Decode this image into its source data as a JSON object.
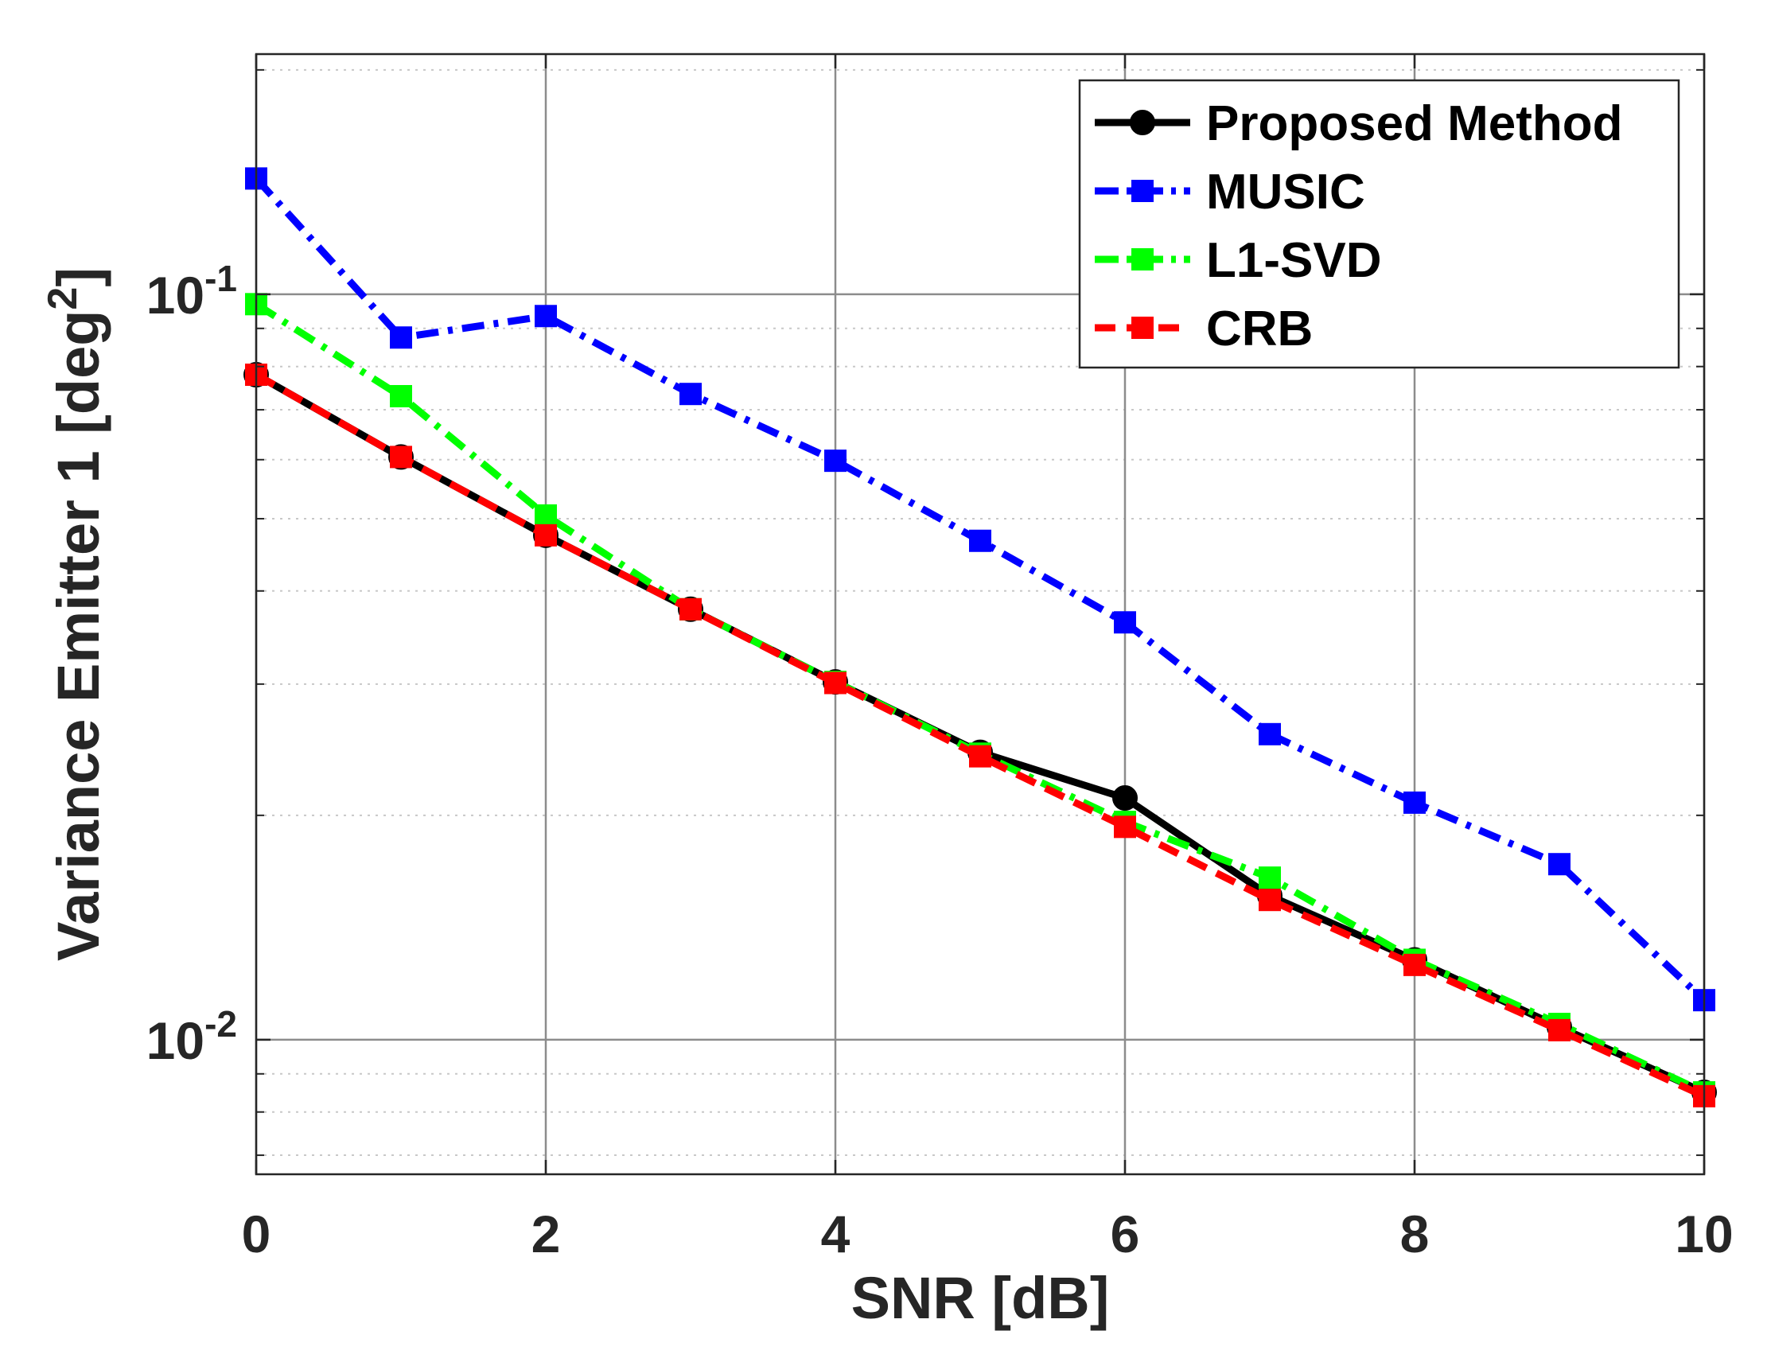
{
  "chart_data": {
    "type": "line",
    "title": "",
    "xlabel": "SNR [dB]",
    "ylabel": "Variance Emitter 1 [deg",
    "ylabel_superscript": "2",
    "ylabel_suffix": "]",
    "yscale": "log",
    "xlim": [
      0,
      10
    ],
    "ylim": [
      0.0066,
      0.21
    ],
    "grid": true,
    "legend_position": "top-right",
    "x": [
      0,
      1,
      2,
      3,
      4,
      5,
      6,
      7,
      8,
      9,
      10
    ],
    "xticks": [
      0,
      2,
      4,
      6,
      8,
      10
    ],
    "xtick_labels": [
      "0",
      "2",
      "4",
      "6",
      "8",
      "10"
    ],
    "yticks": [
      0.01,
      0.1
    ],
    "ytick_labels": [
      {
        "base": "10",
        "exp": "-2"
      },
      {
        "base": "10",
        "exp": "-1"
      }
    ],
    "series": [
      {
        "name": "Proposed Method",
        "color": "#000000",
        "dash": "solid",
        "marker": "circle",
        "values": [
          0.078,
          0.0605,
          0.0475,
          0.0378,
          0.0302,
          0.0243,
          0.0211,
          0.0156,
          0.0128,
          0.0104,
          0.0085
        ]
      },
      {
        "name": "MUSIC",
        "color": "#0000ff",
        "dash": "dashdot",
        "marker": "square",
        "values": [
          0.143,
          0.0875,
          0.0935,
          0.0735,
          0.0598,
          0.0467,
          0.0363,
          0.0257,
          0.0208,
          0.0172,
          0.0113
        ]
      },
      {
        "name": "L1-SVD",
        "color": "#00ff00",
        "dash": "dashdot",
        "marker": "square",
        "values": [
          0.097,
          0.073,
          0.0505,
          0.0378,
          0.0302,
          0.0242,
          0.0196,
          0.0165,
          0.0128,
          0.0105,
          0.0085
        ]
      },
      {
        "name": "CRB",
        "color": "#ff0000",
        "dash": "dashed",
        "marker": "square",
        "values": [
          0.078,
          0.0605,
          0.0475,
          0.0378,
          0.0301,
          0.024,
          0.0193,
          0.0154,
          0.0126,
          0.0103,
          0.0084
        ]
      }
    ]
  }
}
